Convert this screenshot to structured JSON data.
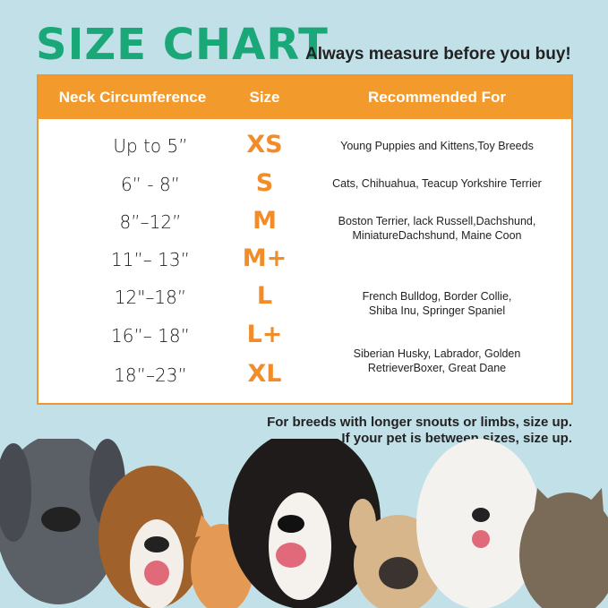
{
  "title": "SIZE CHART",
  "subtitle": "Always measure before you buy!",
  "colors": {
    "accent": "#f39a2c",
    "title": "#1aa878",
    "background": "#c2e0e8"
  },
  "table": {
    "headers": [
      "Neck Circumference",
      "Size",
      "Recommended For"
    ],
    "rows": [
      {
        "neck": "Up to 5”",
        "size": "XS"
      },
      {
        "neck": "6” - 8”",
        "size": "S"
      },
      {
        "neck": "8”–12”",
        "size": "M"
      },
      {
        "neck": "11”– 13”",
        "size": "M+"
      },
      {
        "neck": "12\"–18”",
        "size": "L"
      },
      {
        "neck": "16”– 18”",
        "size": "L+"
      },
      {
        "neck": "18”–23”",
        "size": "XL"
      }
    ],
    "recommendations": [
      [
        "Young Puppies and Kittens,Toy Breeds"
      ],
      [
        "Cats, Chihuahua, Teacup Yorkshire Terrier"
      ],
      [
        "Boston Terrier, lack Russell,Dachshund,",
        "MiniatureDachshund, Maine Coon"
      ],
      [
        "French Bulldog, Border Collie,",
        "Shiba Inu, Springer Spaniel"
      ],
      [
        "Siberian Husky, Labrador, Golden",
        "RetrieverBoxer, Great Dane"
      ]
    ]
  },
  "notes": [
    "For breeds with longer snouts or limbs, size up.",
    "If your pet is between sizes, size up."
  ]
}
